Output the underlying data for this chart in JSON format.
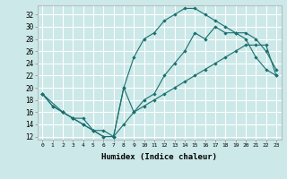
{
  "xlabel": "Humidex (Indice chaleur)",
  "bg_color": "#cce8e8",
  "line_color": "#1a7070",
  "grid_color": "#ffffff",
  "xlim": [
    -0.5,
    23.5
  ],
  "ylim": [
    11.5,
    33.5
  ],
  "yticks": [
    12,
    14,
    16,
    18,
    20,
    22,
    24,
    26,
    28,
    30,
    32
  ],
  "xticks": [
    0,
    1,
    2,
    3,
    4,
    5,
    6,
    7,
    8,
    9,
    10,
    11,
    12,
    13,
    14,
    15,
    16,
    17,
    18,
    19,
    20,
    21,
    22,
    23
  ],
  "series1_x": [
    0,
    1,
    2,
    3,
    4,
    5,
    6,
    7,
    8,
    9,
    10,
    11,
    12,
    13,
    14,
    15,
    16,
    17,
    18,
    19,
    20,
    21,
    22,
    23
  ],
  "series1_y": [
    19,
    17,
    16,
    15,
    14,
    13,
    12,
    12,
    14,
    16,
    17,
    18,
    19,
    20,
    21,
    22,
    23,
    24,
    25,
    26,
    27,
    27,
    27,
    22
  ],
  "series2_x": [
    0,
    1,
    2,
    3,
    4,
    5,
    6,
    7,
    8,
    9,
    10,
    11,
    12,
    13,
    14,
    15,
    16,
    17,
    18,
    19,
    20,
    21,
    22,
    23
  ],
  "series2_y": [
    19,
    17,
    16,
    15,
    14,
    13,
    12,
    12,
    20,
    16,
    18,
    19,
    22,
    24,
    26,
    29,
    28,
    30,
    29,
    29,
    28,
    25,
    23,
    22
  ],
  "series3_x": [
    0,
    2,
    3,
    4,
    5,
    6,
    7,
    8,
    9,
    10,
    11,
    12,
    13,
    14,
    15,
    16,
    17,
    18,
    19,
    20,
    21,
    22,
    23
  ],
  "series3_y": [
    19,
    16,
    15,
    15,
    13,
    13,
    12,
    20,
    25,
    28,
    29,
    31,
    32,
    33,
    33,
    32,
    31,
    30,
    29,
    29,
    28,
    26,
    23
  ]
}
